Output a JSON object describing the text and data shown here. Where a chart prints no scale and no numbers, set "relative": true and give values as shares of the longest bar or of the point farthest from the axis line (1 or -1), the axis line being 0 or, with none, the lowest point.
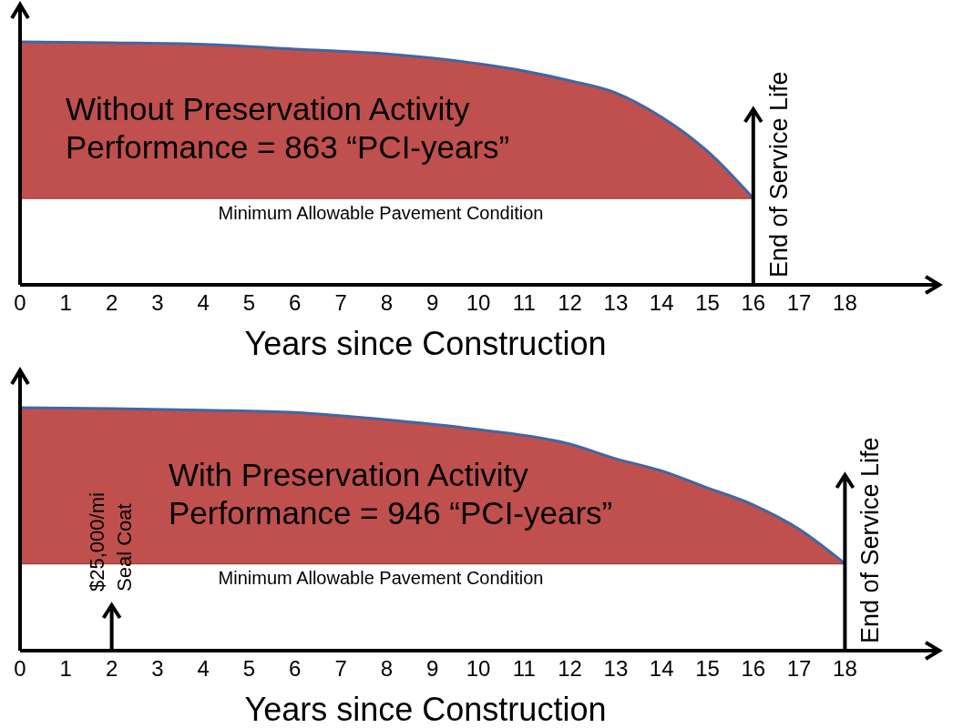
{
  "chart_data": [
    {
      "type": "area",
      "relative": true,
      "xlabel": "Years since Construction",
      "x": [
        0,
        2,
        4,
        6,
        8,
        10,
        11,
        12,
        13,
        14,
        15,
        16
      ],
      "xlim": [
        0,
        20
      ],
      "xticks": [
        0,
        1,
        2,
        3,
        4,
        5,
        6,
        7,
        8,
        9,
        10,
        11,
        12,
        13,
        14,
        15,
        16,
        17,
        18
      ],
      "series": [
        {
          "color": "#c0504d",
          "values": [
            1.0,
            0.996,
            0.99,
            0.97,
            0.95,
            0.91,
            0.88,
            0.84,
            0.79,
            0.69,
            0.55,
            0.356
          ]
        }
      ],
      "ref_lines": [
        {
          "axis": "y",
          "value": 0.356,
          "label": "Minimum Allowable Pavement Condition"
        },
        {
          "axis": "x",
          "value": 16,
          "label": "End of Service Life"
        }
      ],
      "annotations": [
        "Without Preservation Activity",
        "Performance = 863 “PCI-years”"
      ]
    },
    {
      "type": "area",
      "relative": true,
      "xlabel": "Years since Construction",
      "x": [
        0,
        2,
        4,
        6,
        8,
        10,
        12,
        13,
        14,
        15,
        16,
        17,
        18
      ],
      "xlim": [
        0,
        20
      ],
      "xticks": [
        0,
        1,
        2,
        3,
        4,
        5,
        6,
        7,
        8,
        9,
        10,
        11,
        12,
        13,
        14,
        15,
        16,
        17,
        18
      ],
      "series": [
        {
          "color": "#c0504d",
          "values": [
            1.0,
            0.996,
            0.99,
            0.98,
            0.95,
            0.91,
            0.85,
            0.79,
            0.74,
            0.67,
            0.6,
            0.5,
            0.358
          ]
        }
      ],
      "ref_lines": [
        {
          "axis": "y",
          "value": 0.358,
          "label": "Minimum Allowable Pavement Condition"
        },
        {
          "axis": "x",
          "value": 2,
          "label": "$25,000/mi\nSeal Coat"
        },
        {
          "axis": "x",
          "value": 18,
          "label": "End of Service Life"
        }
      ],
      "annotations": [
        "With Preservation Activity",
        "Performance = 946 “PCI-years”"
      ]
    }
  ]
}
